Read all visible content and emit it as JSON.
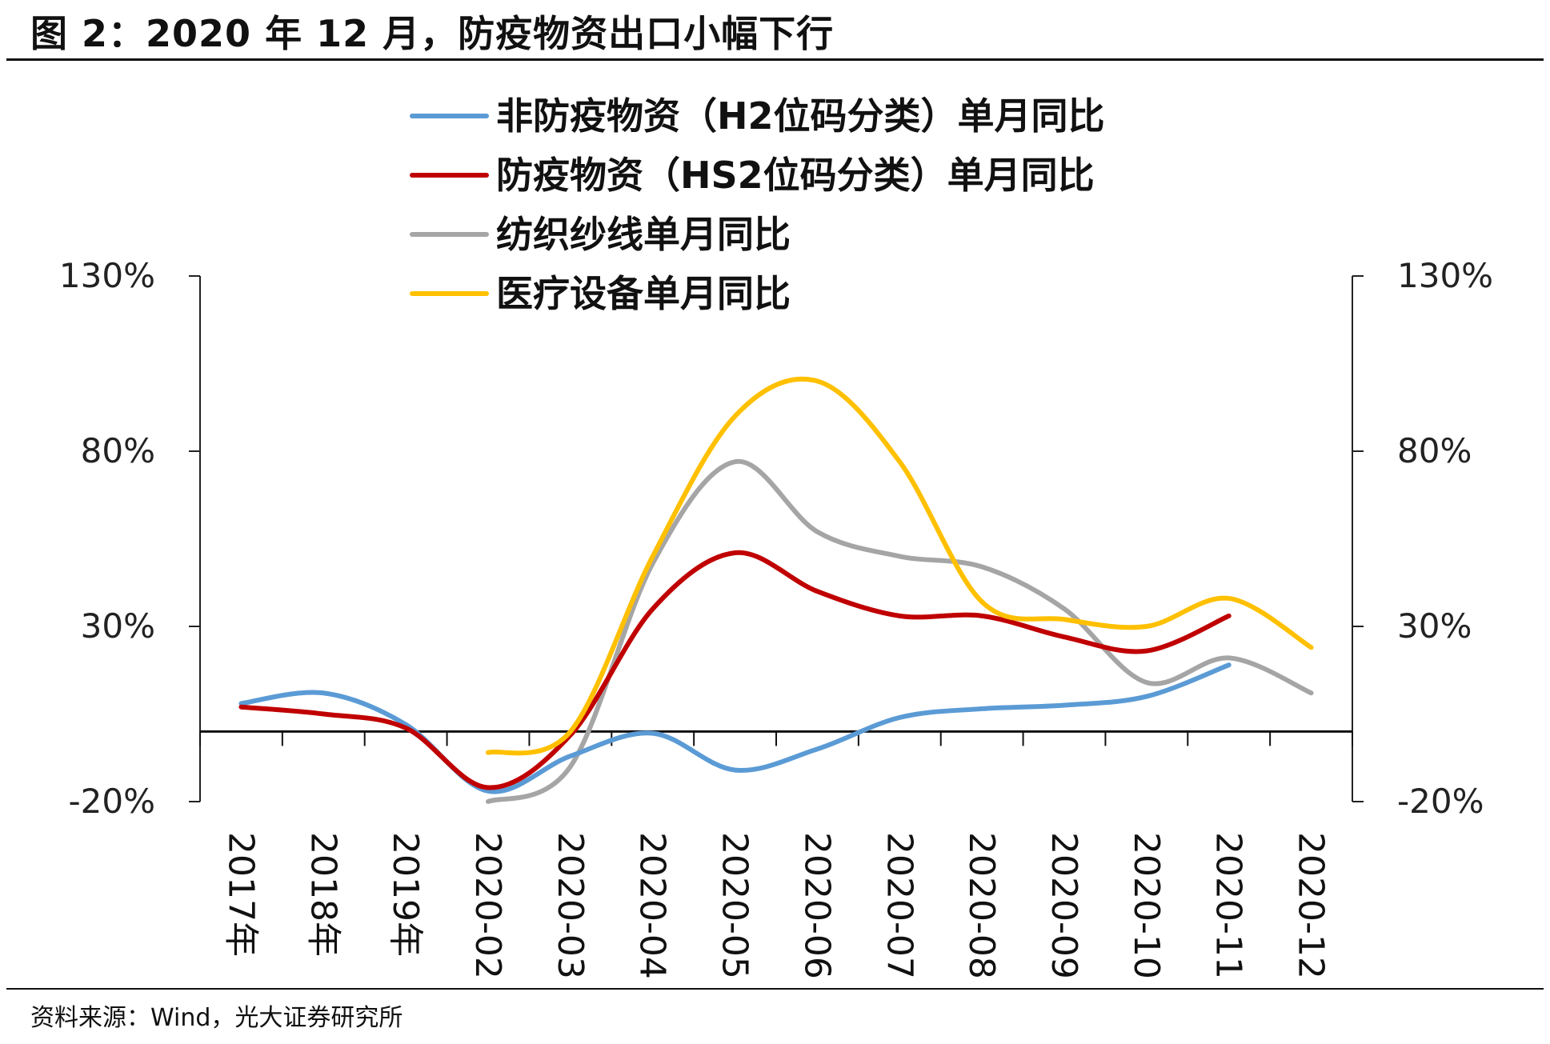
{
  "title": "图 2：2020 年 12 月，防疫物资出口小幅下行",
  "source": "资料来源：Wind，光大证券研究所",
  "chart_data": {
    "type": "line",
    "categories": [
      "2017年",
      "2018年",
      "2019年",
      "2020-02",
      "2020-03",
      "2020-04",
      "2020-05",
      "2020-06",
      "2020-07",
      "2020-08",
      "2020-09",
      "2020-10",
      "2020-11",
      "2020-12"
    ],
    "ylim": [
      -20,
      130
    ],
    "y2lim": [
      -20,
      130
    ],
    "yticks": [
      "130%",
      "80%",
      "30%",
      "-20%"
    ],
    "yticks_right": [
      "130%",
      "80%",
      "30%",
      "-20%"
    ],
    "series": [
      {
        "name": "非防疫物资（H2位码分类）单月同比",
        "color": "#5B9BD5",
        "values": [
          8,
          11,
          2,
          -17,
          -7,
          -0.5,
          -11,
          -5,
          4,
          6.5,
          7.5,
          10,
          19,
          null
        ]
      },
      {
        "name": "防疫物资（HS2位码分类）单月同比",
        "color": "#C00000",
        "values": [
          7,
          5,
          1,
          -16,
          -1,
          35,
          51,
          40,
          33,
          33,
          27,
          23,
          33,
          null
        ]
      },
      {
        "name": "纺织纱线单月同比",
        "color": "#A5A5A5",
        "values": [
          null,
          null,
          null,
          -20,
          -10,
          48,
          77,
          57,
          50,
          47,
          35,
          14,
          21,
          11
        ]
      },
      {
        "name": "医疗设备单月同比",
        "color": "#FFC000",
        "values": [
          null,
          null,
          null,
          -6,
          0,
          50,
          90,
          100,
          77,
          37,
          32,
          30,
          38,
          24
        ]
      }
    ]
  }
}
